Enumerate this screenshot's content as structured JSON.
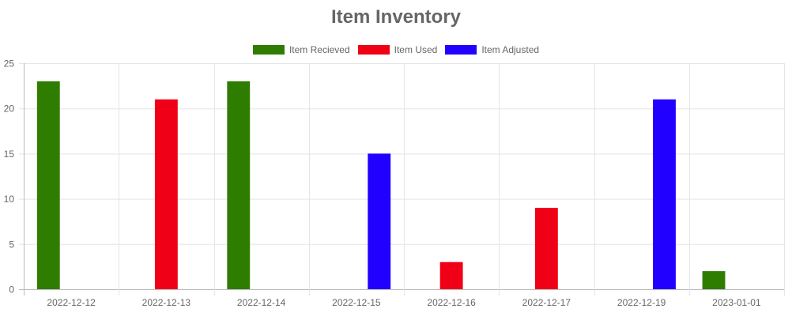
{
  "chart_data": {
    "type": "bar",
    "title": "Item Inventory",
    "categories": [
      "2022-12-12",
      "2022-12-13",
      "2022-12-14",
      "2022-12-15",
      "2022-12-16",
      "2022-12-17",
      "2022-12-19",
      "2023-01-01"
    ],
    "series": [
      {
        "name": "Item Recieved",
        "color": "#2e7d00",
        "values": [
          23,
          0,
          23,
          0,
          0,
          0,
          0,
          2
        ]
      },
      {
        "name": "Item Used",
        "color": "#f00016",
        "values": [
          0,
          21,
          0,
          0,
          3,
          9,
          0,
          0
        ]
      },
      {
        "name": "Item Adjusted",
        "color": "#2200ff",
        "values": [
          0,
          0,
          0,
          15,
          0,
          0,
          21,
          0
        ]
      }
    ],
    "ylim": [
      0,
      25
    ],
    "yticks": [
      0,
      5,
      10,
      15,
      20,
      25
    ],
    "grid": true,
    "legend_position": "top"
  }
}
